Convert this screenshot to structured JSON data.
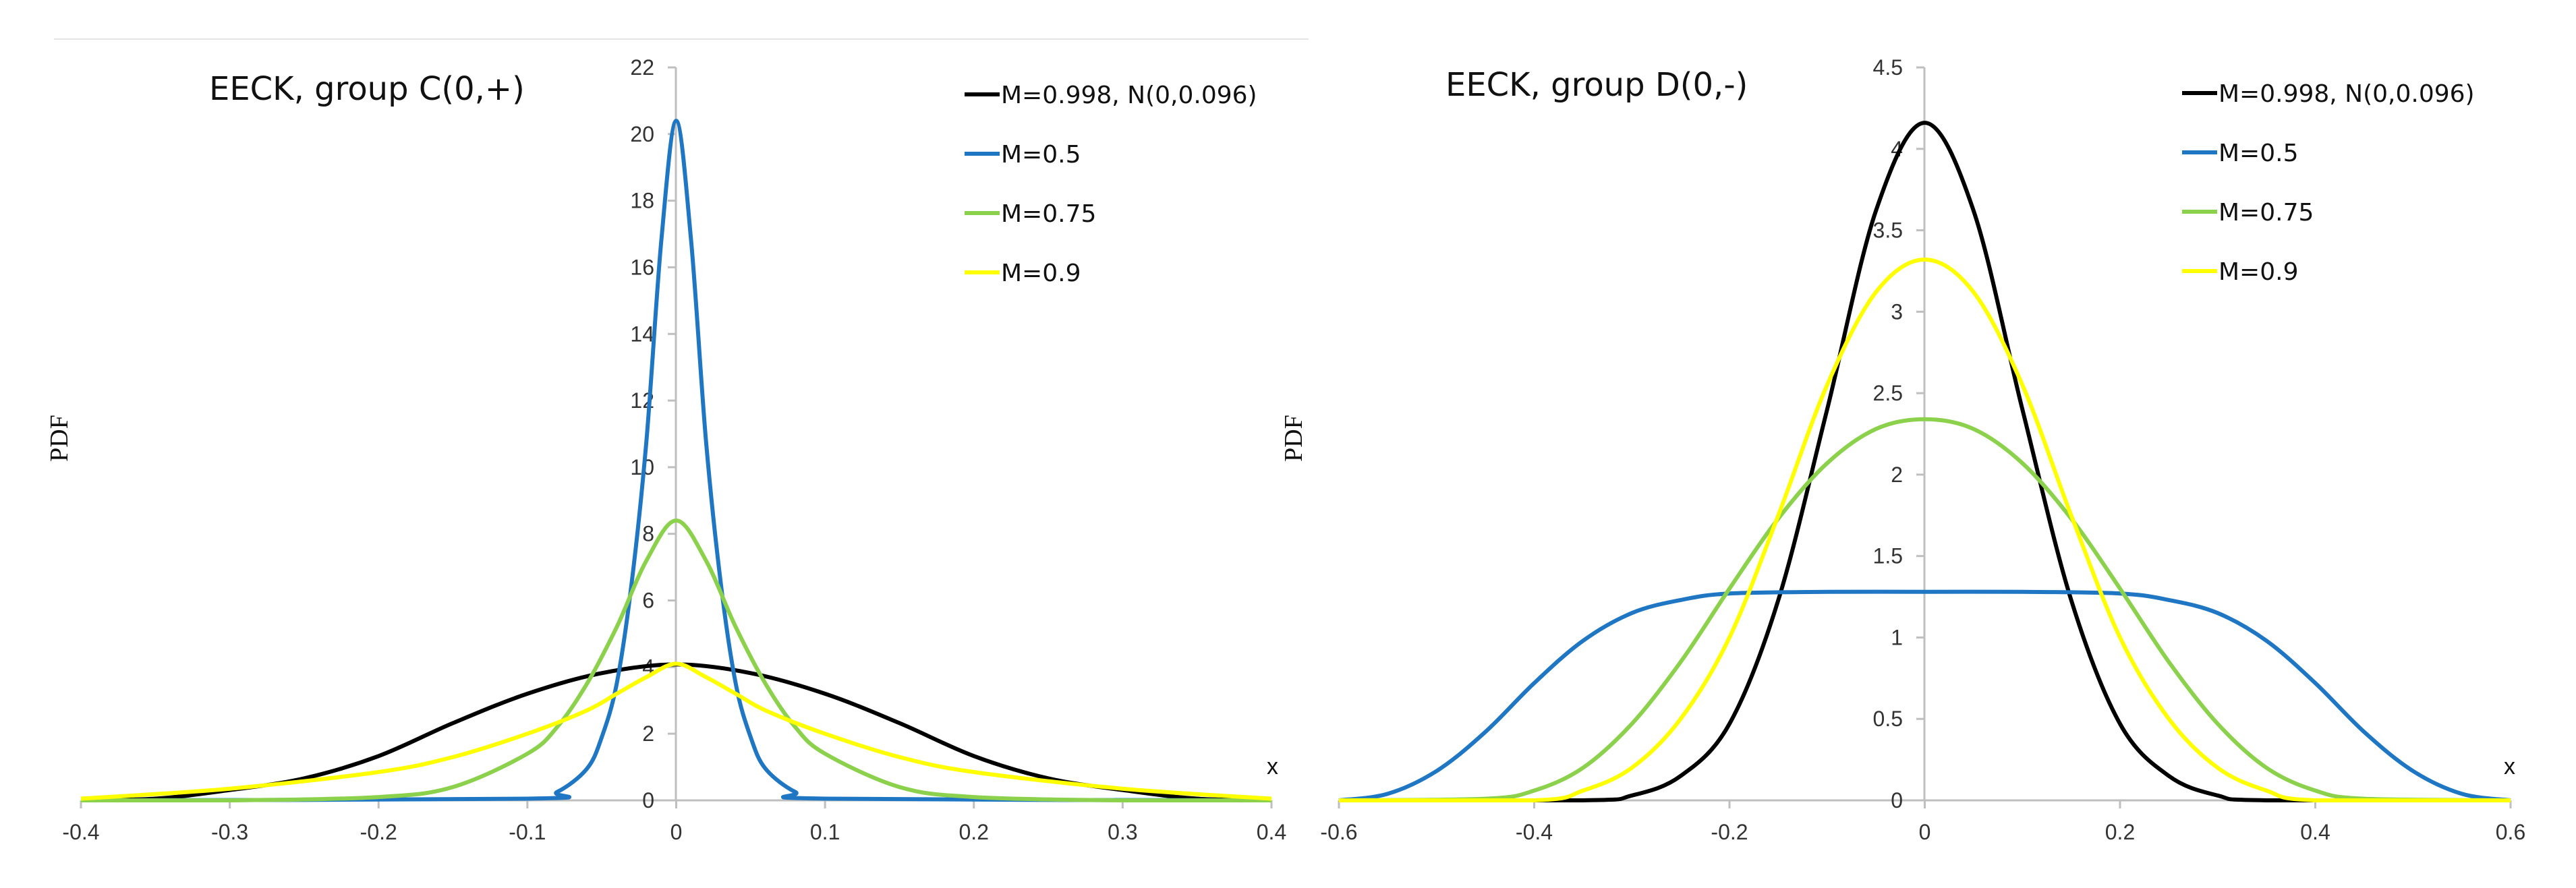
{
  "chart_data": [
    {
      "type": "line",
      "title": "EECK, group C(0,+)",
      "xlabel": "x",
      "ylabel": "PDF",
      "xlim": [
        -0.4,
        0.4
      ],
      "ylim": [
        0,
        22
      ],
      "x_ticks": [
        -0.4,
        -0.3,
        -0.2,
        -0.1,
        0,
        0.1,
        0.2,
        0.3,
        0.4
      ],
      "x_tick_labels": [
        "-0.4",
        "-0.3",
        "-0.2",
        "-0.1",
        "0",
        "0.1",
        "0.2",
        "0.3",
        "0.4"
      ],
      "y_ticks": [
        0,
        2,
        4,
        6,
        8,
        10,
        12,
        14,
        16,
        18,
        20,
        22
      ],
      "y_tick_labels": [
        "0",
        "2",
        "4",
        "6",
        "8",
        "10",
        "12",
        "14",
        "16",
        "18",
        "20",
        "22"
      ],
      "grid": false,
      "legend_position": "top-right",
      "series": [
        {
          "name": "M=0.998, N(0,0.096)",
          "color": "#000000",
          "x": [
            -0.4,
            -0.35,
            -0.3,
            -0.25,
            -0.2,
            -0.15,
            -0.1,
            -0.05,
            0,
            0.05,
            0.1,
            0.15,
            0.2,
            0.25,
            0.3,
            0.35,
            0.4
          ],
          "y": [
            0.01,
            0.05,
            0.31,
            0.66,
            1.33,
            2.32,
            3.2,
            3.82,
            4.08,
            3.82,
            3.2,
            2.32,
            1.33,
            0.66,
            0.31,
            0.05,
            0.01
          ]
        },
        {
          "name": "M=0.5",
          "color": "#1f77c4",
          "x": [
            -0.4,
            -0.1,
            -0.08,
            -0.06,
            -0.05,
            -0.04,
            -0.03,
            -0.02,
            -0.01,
            0,
            0.01,
            0.02,
            0.03,
            0.04,
            0.05,
            0.06,
            0.08,
            0.1,
            0.4
          ],
          "y": [
            0,
            0.05,
            0.25,
            0.95,
            1.9,
            3.5,
            6.5,
            10.8,
            16.8,
            20.4,
            16.8,
            10.8,
            6.5,
            3.5,
            1.9,
            0.95,
            0.25,
            0.05,
            0
          ]
        },
        {
          "name": "M=0.75",
          "color": "#8cd14c",
          "x": [
            -0.4,
            -0.3,
            -0.2,
            -0.15,
            -0.1,
            -0.08,
            -0.06,
            -0.04,
            -0.02,
            0,
            0.02,
            0.04,
            0.06,
            0.08,
            0.1,
            0.15,
            0.2,
            0.3,
            0.4
          ],
          "y": [
            0,
            0,
            0.1,
            0.4,
            1.4,
            2.2,
            3.5,
            5.2,
            7.2,
            8.4,
            7.2,
            5.2,
            3.5,
            2.2,
            1.4,
            0.4,
            0.1,
            0,
            0
          ]
        },
        {
          "name": "M=0.9",
          "color": "#ffff00",
          "x": [
            -0.4,
            -0.3,
            -0.2,
            -0.15,
            -0.1,
            -0.06,
            -0.04,
            -0.02,
            0,
            0.02,
            0.04,
            0.06,
            0.1,
            0.15,
            0.2,
            0.3,
            0.4
          ],
          "y": [
            0.05,
            0.35,
            0.85,
            1.3,
            2.0,
            2.7,
            3.2,
            3.7,
            4.1,
            3.7,
            3.2,
            2.7,
            2.0,
            1.3,
            0.85,
            0.35,
            0.05
          ]
        }
      ]
    },
    {
      "type": "line",
      "title": "EECK, group D(0,-)",
      "xlabel": "x",
      "ylabel": "PDF",
      "xlim": [
        -0.6,
        0.6
      ],
      "ylim": [
        0,
        4.5
      ],
      "x_ticks": [
        -0.6,
        -0.4,
        -0.2,
        0,
        0.2,
        0.4,
        0.6
      ],
      "x_tick_labels": [
        "-0.6",
        "-0.4",
        "-0.2",
        "0",
        "0.2",
        "0.4",
        "0.6"
      ],
      "y_ticks": [
        0,
        0.5,
        1,
        1.5,
        2,
        2.5,
        3,
        3.5,
        4,
        4.5
      ],
      "y_tick_labels": [
        "0",
        "0.5",
        "1",
        "1.5",
        "2",
        "2.5",
        "3",
        "3.5",
        "4",
        "4.5"
      ],
      "grid": false,
      "legend_position": "top-right",
      "series": [
        {
          "name": "M=0.998, N(0,0.096)",
          "color": "#000000",
          "x": [
            -0.6,
            -0.35,
            -0.3,
            -0.25,
            -0.2,
            -0.15,
            -0.1,
            -0.05,
            0,
            0.05,
            0.1,
            0.15,
            0.2,
            0.25,
            0.3,
            0.35,
            0.6
          ],
          "y": [
            0,
            0,
            0.03,
            0.15,
            0.47,
            1.23,
            2.4,
            3.62,
            4.16,
            3.62,
            2.4,
            1.23,
            0.47,
            0.15,
            0.03,
            0,
            0
          ]
        },
        {
          "name": "M=0.5",
          "color": "#1f77c4",
          "x": [
            -0.6,
            -0.55,
            -0.5,
            -0.45,
            -0.4,
            -0.35,
            -0.3,
            -0.25,
            -0.2,
            -0.1,
            0,
            0.1,
            0.2,
            0.25,
            0.3,
            0.35,
            0.4,
            0.45,
            0.5,
            0.55,
            0.6
          ],
          "y": [
            0,
            0.04,
            0.18,
            0.42,
            0.72,
            0.98,
            1.15,
            1.23,
            1.27,
            1.28,
            1.28,
            1.28,
            1.27,
            1.23,
            1.15,
            0.98,
            0.72,
            0.42,
            0.18,
            0.04,
            0
          ]
        },
        {
          "name": "M=0.75",
          "color": "#8cd14c",
          "x": [
            -0.6,
            -0.45,
            -0.4,
            -0.35,
            -0.3,
            -0.25,
            -0.2,
            -0.15,
            -0.1,
            -0.05,
            0,
            0.05,
            0.1,
            0.15,
            0.2,
            0.25,
            0.3,
            0.35,
            0.4,
            0.45,
            0.6
          ],
          "y": [
            0,
            0.01,
            0.06,
            0.2,
            0.47,
            0.85,
            1.3,
            1.73,
            2.07,
            2.28,
            2.34,
            2.28,
            2.07,
            1.73,
            1.3,
            0.85,
            0.47,
            0.2,
            0.06,
            0.01,
            0
          ]
        },
        {
          "name": "M=0.9",
          "color": "#ffff00",
          "x": [
            -0.6,
            -0.4,
            -0.35,
            -0.3,
            -0.25,
            -0.2,
            -0.15,
            -0.1,
            -0.05,
            0,
            0.05,
            0.1,
            0.15,
            0.2,
            0.25,
            0.3,
            0.35,
            0.4,
            0.6
          ],
          "y": [
            0,
            0,
            0.06,
            0.2,
            0.5,
            1.0,
            1.75,
            2.55,
            3.12,
            3.32,
            3.12,
            2.55,
            1.75,
            1.0,
            0.5,
            0.2,
            0.06,
            0,
            0
          ]
        }
      ]
    }
  ]
}
